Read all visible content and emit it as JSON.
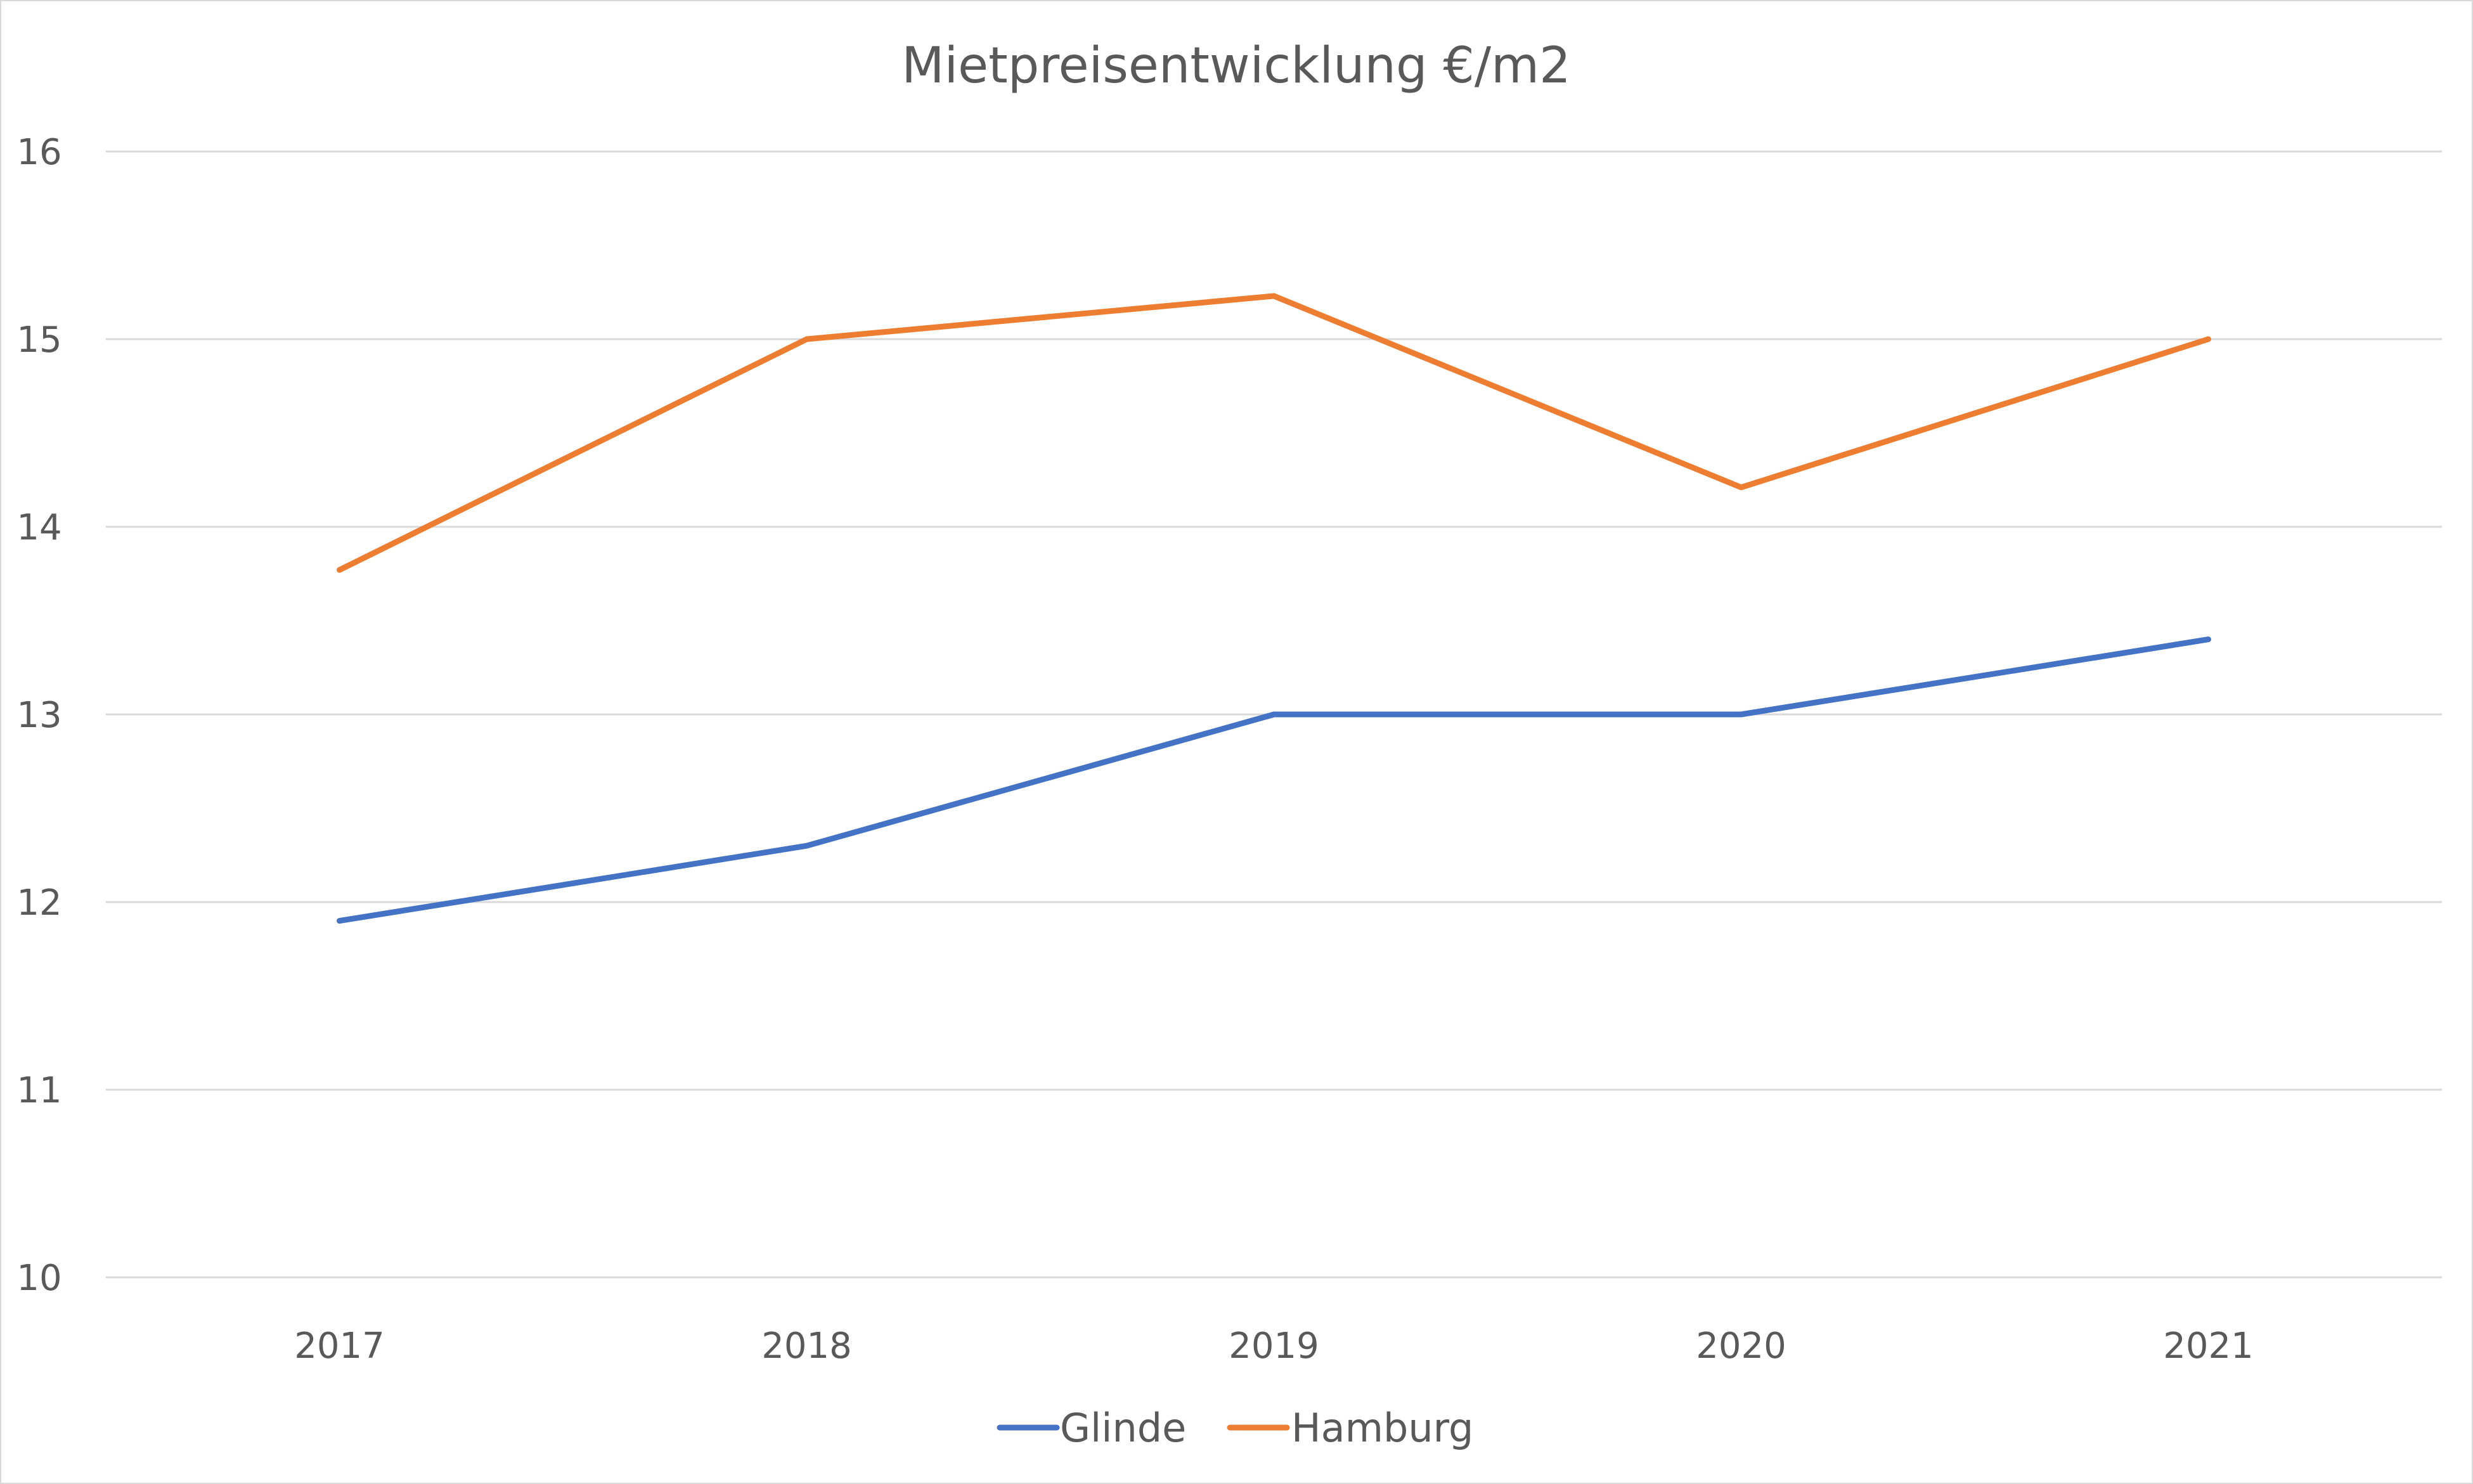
{
  "chart_data": {
    "type": "line",
    "title": "Mietpreisentwicklung  €/m2",
    "categories": [
      "2017",
      "2018",
      "2019",
      "2020",
      "2021"
    ],
    "ylim": [
      10,
      16
    ],
    "yticks": [
      10,
      11,
      12,
      13,
      14,
      15,
      16
    ],
    "grid": true,
    "legend_position": "bottom",
    "series": [
      {
        "name": "Glinde",
        "color": "#4472c4",
        "values": [
          11.9,
          12.3,
          13.0,
          13.0,
          13.4
        ]
      },
      {
        "name": "Hamburg",
        "color": "#ed7d31",
        "values": [
          13.77,
          15.0,
          15.23,
          14.21,
          15.0
        ]
      }
    ]
  }
}
